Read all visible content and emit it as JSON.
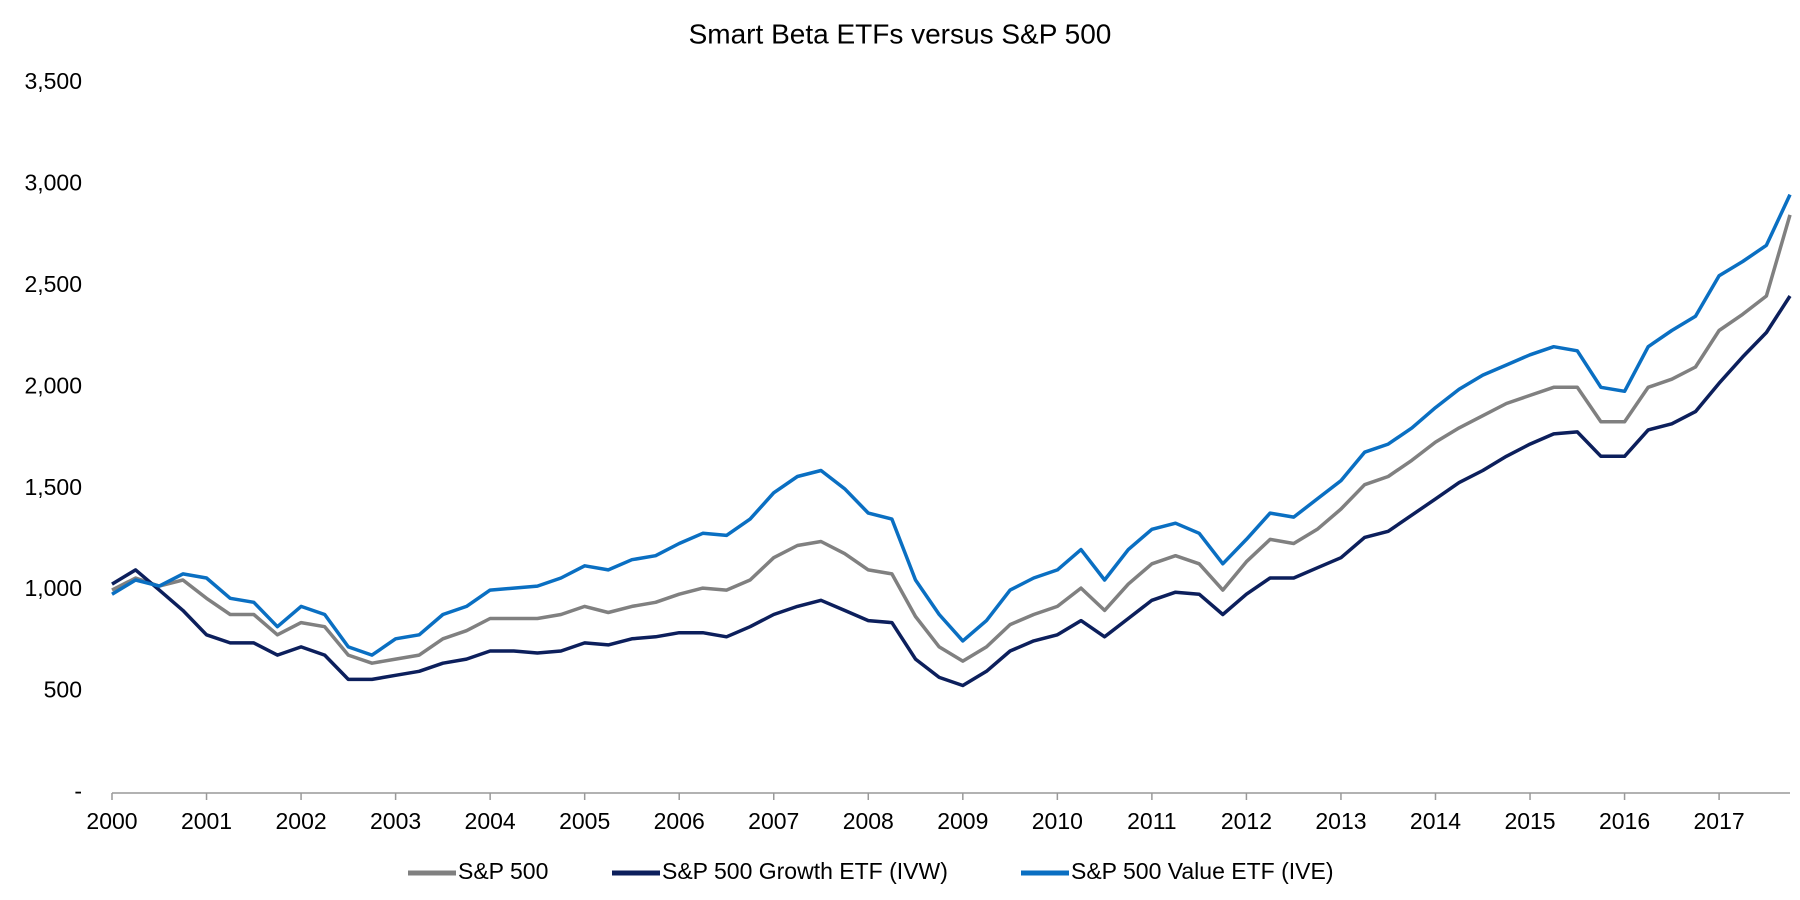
{
  "chart_data": {
    "type": "line",
    "title": "Smart Beta ETFs versus S&P 500",
    "x": [
      2000,
      2000.25,
      2000.5,
      2000.75,
      2001,
      2001.25,
      2001.5,
      2001.75,
      2002,
      2002.25,
      2002.5,
      2002.75,
      2003,
      2003.25,
      2003.5,
      2003.75,
      2004,
      2004.25,
      2004.5,
      2004.75,
      2005,
      2005.25,
      2005.5,
      2005.75,
      2006,
      2006.25,
      2006.5,
      2006.75,
      2007,
      2007.25,
      2007.5,
      2007.75,
      2008,
      2008.25,
      2008.5,
      2008.75,
      2009,
      2009.25,
      2009.5,
      2009.75,
      2010,
      2010.25,
      2010.5,
      2010.75,
      2011,
      2011.25,
      2011.5,
      2011.75,
      2012,
      2012.25,
      2012.5,
      2012.75,
      2013,
      2013.25,
      2013.5,
      2013.75,
      2014,
      2014.25,
      2014.5,
      2014.75,
      2015,
      2015.25,
      2015.5,
      2015.75,
      2016,
      2016.25,
      2016.5,
      2016.75,
      2017,
      2017.25,
      2017.5,
      2017.75
    ],
    "series": [
      {
        "name": "S&P 500",
        "color": "#808080",
        "values": [
          1000,
          1060,
          1020,
          1050,
          960,
          880,
          880,
          780,
          840,
          820,
          680,
          640,
          660,
          680,
          760,
          800,
          860,
          860,
          860,
          880,
          920,
          890,
          920,
          940,
          980,
          1010,
          1000,
          1050,
          1160,
          1220,
          1240,
          1180,
          1100,
          1080,
          870,
          720,
          650,
          720,
          830,
          880,
          920,
          1010,
          900,
          1030,
          1130,
          1170,
          1130,
          1000,
          1140,
          1250,
          1230,
          1300,
          1400,
          1520,
          1560,
          1640,
          1730,
          1800,
          1860,
          1920,
          1960,
          2000,
          2000,
          1830,
          1830,
          2000,
          2040,
          2100,
          2280,
          2360,
          2450,
          2850
        ]
      },
      {
        "name": "S&P 500 Growth ETF (IVW)",
        "color": "#0c1f5c",
        "values": [
          1030,
          1100,
          1000,
          900,
          780,
          740,
          740,
          680,
          720,
          680,
          560,
          560,
          580,
          600,
          640,
          660,
          700,
          700,
          690,
          700,
          740,
          730,
          760,
          770,
          790,
          790,
          770,
          820,
          880,
          920,
          950,
          900,
          850,
          840,
          660,
          570,
          530,
          600,
          700,
          750,
          780,
          850,
          770,
          860,
          950,
          990,
          980,
          880,
          980,
          1060,
          1060,
          1110,
          1160,
          1260,
          1290,
          1370,
          1450,
          1530,
          1590,
          1660,
          1720,
          1770,
          1780,
          1660,
          1660,
          1790,
          1820,
          1880,
          2020,
          2150,
          2270,
          2450
        ]
      },
      {
        "name": "S&P 500 Value ETF (IVE)",
        "color": "#0a6fc2",
        "values": [
          980,
          1050,
          1020,
          1080,
          1060,
          960,
          940,
          820,
          920,
          880,
          720,
          680,
          760,
          780,
          880,
          920,
          1000,
          1010,
          1020,
          1060,
          1120,
          1100,
          1150,
          1170,
          1230,
          1280,
          1270,
          1350,
          1480,
          1560,
          1590,
          1500,
          1380,
          1350,
          1050,
          880,
          750,
          850,
          1000,
          1060,
          1100,
          1200,
          1050,
          1200,
          1300,
          1330,
          1280,
          1130,
          1250,
          1380,
          1360,
          1450,
          1540,
          1680,
          1720,
          1800,
          1900,
          1990,
          2060,
          2110,
          2160,
          2200,
          2180,
          2000,
          1980,
          2200,
          2280,
          2350,
          2550,
          2620,
          2700,
          2950
        ]
      }
    ],
    "xlim": [
      2000,
      2017.75
    ],
    "xticks": [
      2000,
      2001,
      2002,
      2003,
      2004,
      2005,
      2006,
      2007,
      2008,
      2009,
      2010,
      2011,
      2012,
      2013,
      2014,
      2015,
      2016,
      2017
    ],
    "ylim": [
      0,
      3500
    ],
    "yticks": [
      {
        "value": 0,
        "label": "-"
      },
      500,
      {
        "value": 1000,
        "label": "1,000"
      },
      {
        "value": 1500,
        "label": "1,500"
      },
      {
        "value": 2000,
        "label": "2,000"
      },
      {
        "value": 2500,
        "label": "2,500"
      },
      {
        "value": 3000,
        "label": "3,000"
      },
      {
        "value": 3500,
        "label": "3,500"
      }
    ],
    "legend": "bottom"
  }
}
